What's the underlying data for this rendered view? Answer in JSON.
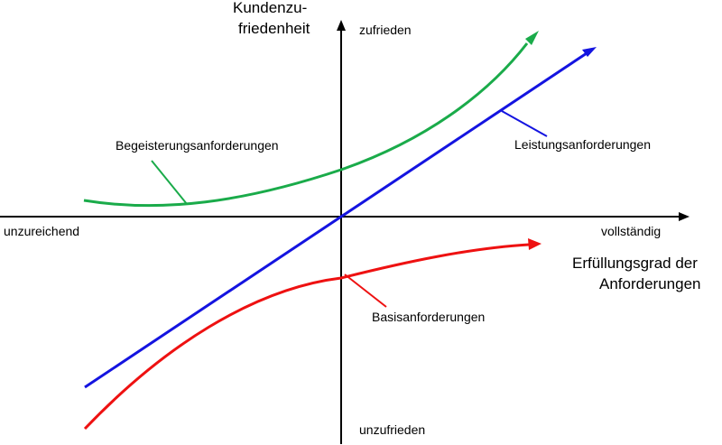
{
  "axes": {
    "y_title_line1": "Kundenzu-",
    "y_title_line2": "friedenheit",
    "y_top": "zufrieden",
    "y_bottom": "unzufrieden",
    "x_left": "unzureichend",
    "x_right": "vollständig",
    "x_title_line1": "Erfüllungsgrad der",
    "x_title_line2": "Anforderungen"
  },
  "curves": {
    "excitement": {
      "label": "Begeisterungsanforderungen",
      "color": "#1aab4a"
    },
    "performance": {
      "label": "Leistungsanforderungen",
      "color": "#1414e0"
    },
    "basic": {
      "label": "Basisanforderungen",
      "color": "#ee1111"
    }
  }
}
